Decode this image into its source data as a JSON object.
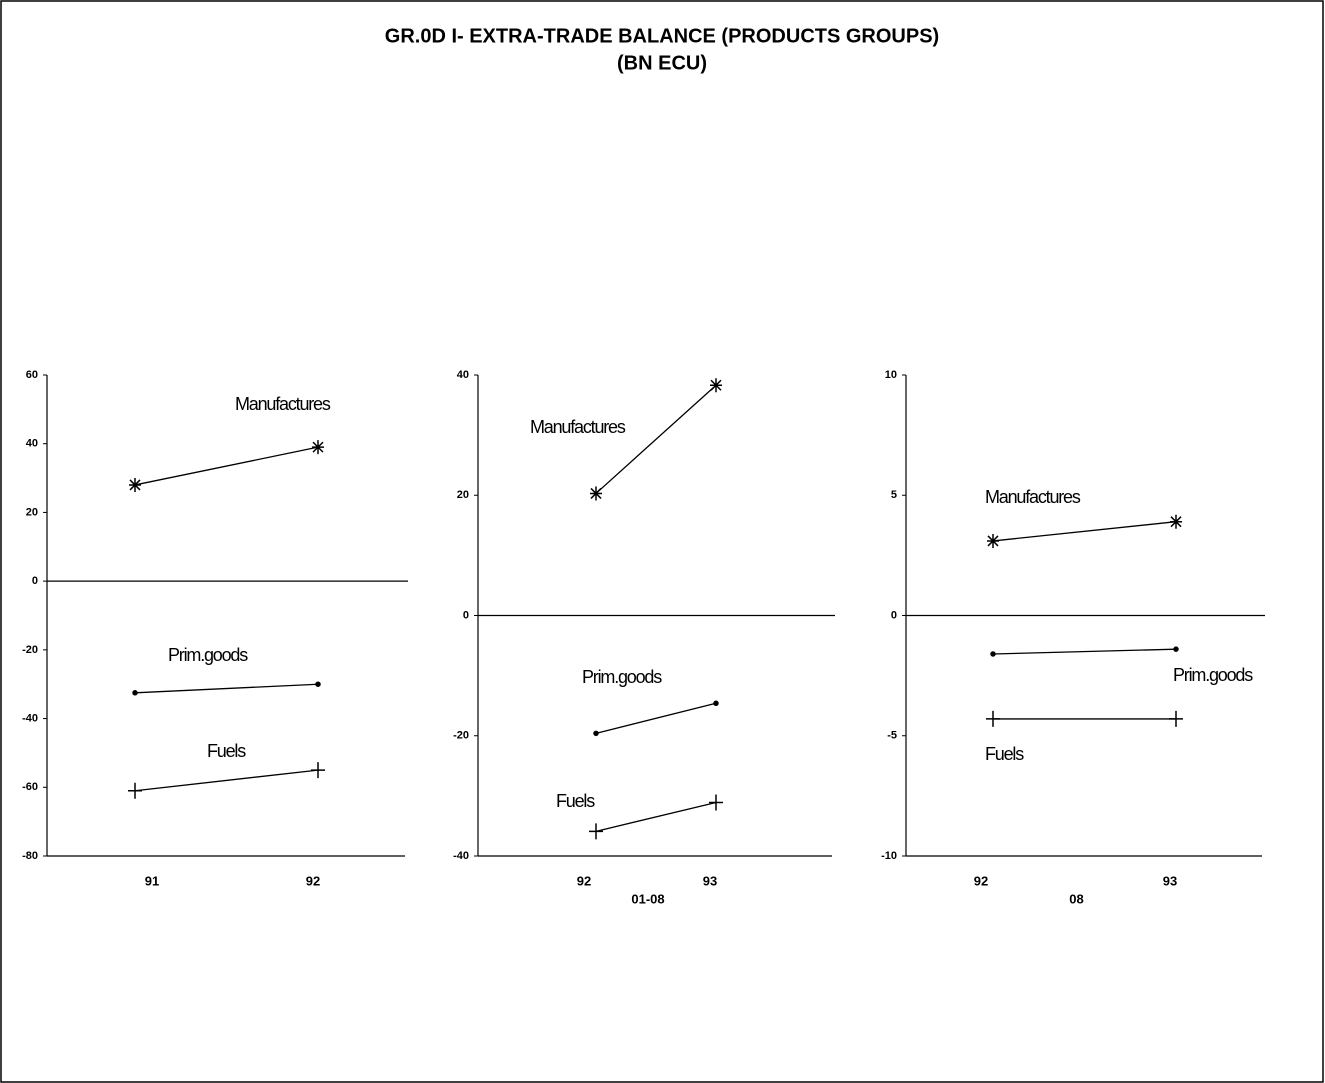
{
  "title": "GR.0D I- EXTRA-TRADE BALANCE (PRODUCTS GROUPS)",
  "subtitle": "(BN ECU)",
  "chart_data": [
    {
      "type": "line",
      "categories": [
        "91",
        "92"
      ],
      "ylim": [
        -80,
        60
      ],
      "yticks": [
        60,
        40,
        20,
        0,
        -20,
        -40,
        -60,
        -80
      ],
      "series": [
        {
          "name": "Manufactures",
          "color": "#000000",
          "marker": "star",
          "values": [
            28,
            39
          ]
        },
        {
          "name": "Prim.goods",
          "color": "#000000",
          "marker": "dot",
          "values": [
            -32.5,
            -30
          ]
        },
        {
          "name": "Fuels",
          "color": "#000000",
          "marker": "plus",
          "values": [
            -61,
            -55
          ]
        }
      ]
    },
    {
      "type": "line",
      "categories": [
        "92",
        "93"
      ],
      "xlabel": "01-08",
      "ylim": [
        -40,
        40
      ],
      "yticks": [
        40,
        20,
        0,
        -20,
        -40
      ],
      "series": [
        {
          "name": "Manufactures",
          "color": "#000000",
          "marker": "star",
          "values": [
            20.3,
            38.3
          ]
        },
        {
          "name": "Prim.goods",
          "color": "#000000",
          "marker": "dot",
          "values": [
            -19.6,
            -14.6
          ]
        },
        {
          "name": "Fuels",
          "color": "#000000",
          "marker": "plus",
          "values": [
            -35.9,
            -31.1
          ]
        }
      ]
    },
    {
      "type": "line",
      "categories": [
        "92",
        "93"
      ],
      "xlabel": "08",
      "ylim": [
        -10,
        10
      ],
      "yticks": [
        10,
        5,
        0,
        -5,
        -10
      ],
      "series": [
        {
          "name": "Manufactures",
          "color": "#000000",
          "marker": "star",
          "values": [
            3.1,
            3.9
          ]
        },
        {
          "name": "Prim.goods",
          "color": "#000000",
          "marker": "dot",
          "values": [
            -1.6,
            -1.4
          ]
        },
        {
          "name": "Fuels",
          "color": "#000000",
          "marker": "plus",
          "values": [
            -4.3,
            -4.3
          ]
        }
      ]
    }
  ]
}
